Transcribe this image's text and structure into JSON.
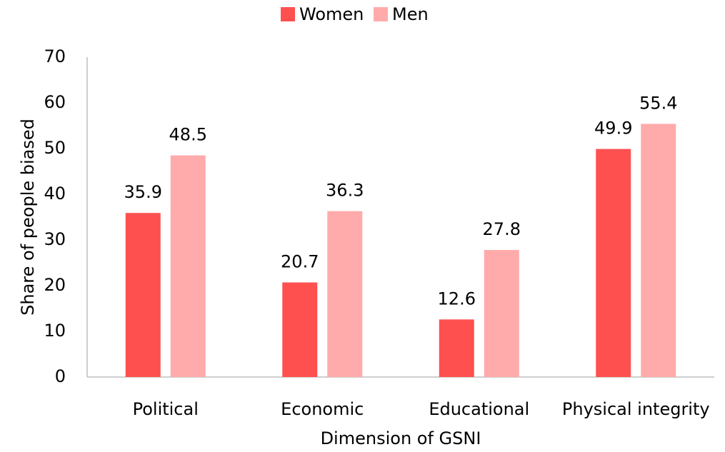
{
  "chart_data": {
    "type": "bar",
    "x_label": "Dimension of GSNI",
    "y_label": "Share of people biased",
    "categories": [
      "Political",
      "Economic",
      "Educational",
      "Physical integrity"
    ],
    "series": [
      {
        "name": "Women",
        "color": "#ff5050",
        "values": [
          35.9,
          20.7,
          12.6,
          49.9
        ]
      },
      {
        "name": "Men",
        "color": "#ffabab",
        "values": [
          48.5,
          36.3,
          27.8,
          55.4
        ]
      }
    ],
    "ylim": [
      0,
      70
    ],
    "yticks": [
      0,
      10,
      20,
      30,
      40,
      50,
      60,
      70
    ],
    "grid": false,
    "legend": "top"
  }
}
